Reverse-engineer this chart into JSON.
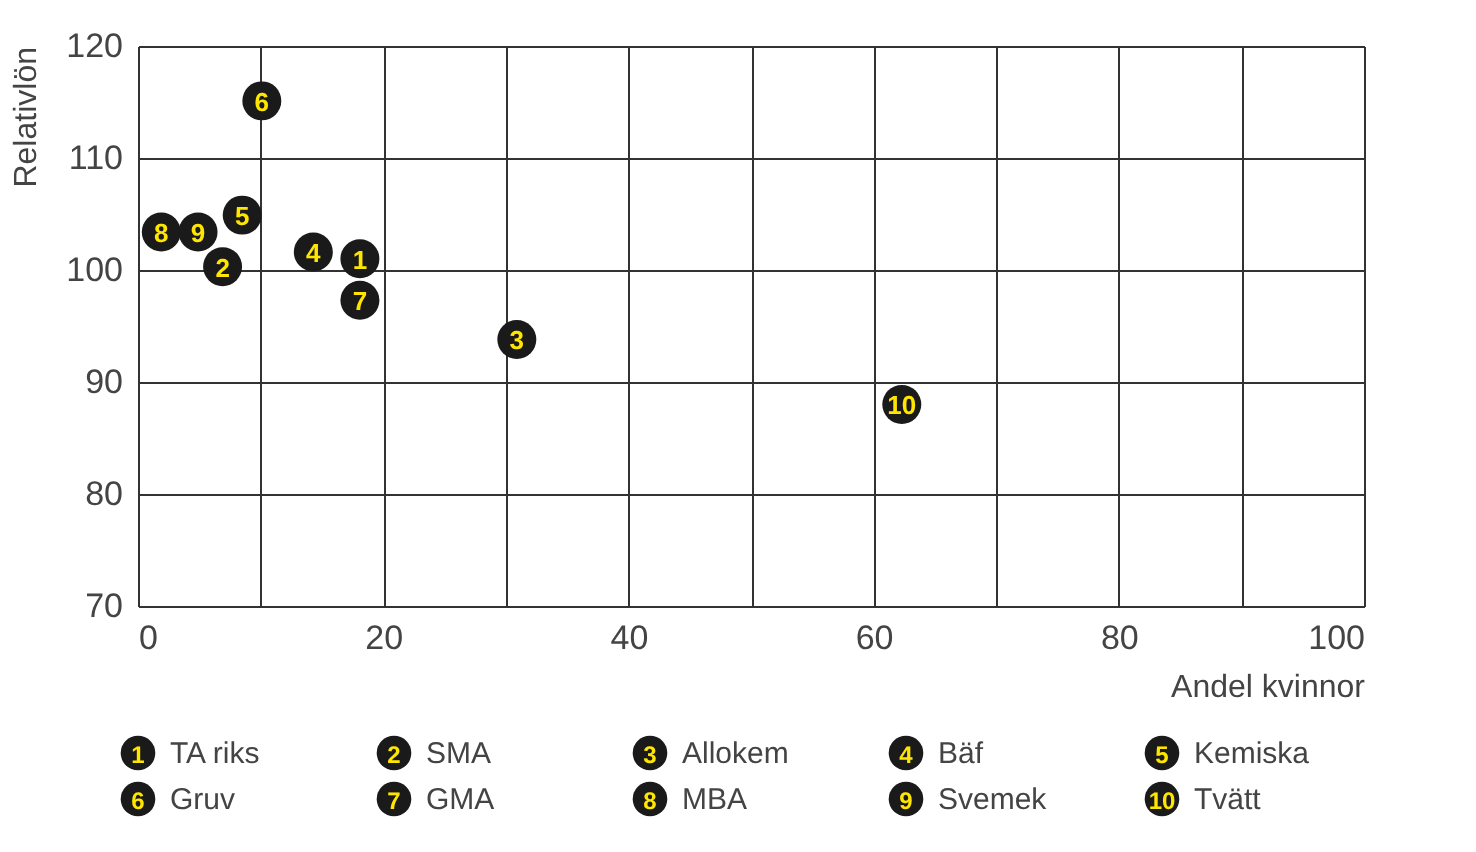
{
  "chart_data": {
    "type": "scatter",
    "xlabel": "Andel kvinnor",
    "ylabel": "Relativlön",
    "xlim": [
      0,
      100
    ],
    "ylim": [
      70,
      120
    ],
    "xticks": [
      0,
      {
        "value": 10,
        "label": null
      },
      20,
      {
        "value": 30,
        "label": null
      },
      40,
      {
        "value": 50,
        "label": null
      },
      60,
      {
        "value": 70,
        "label": null
      },
      80,
      {
        "value": 90,
        "label": null
      },
      100
    ],
    "yticks": [
      70,
      80,
      90,
      100,
      110,
      120
    ],
    "grid": true,
    "legend": "bottom",
    "marker": "circle",
    "series": [
      {
        "name": "TA riks",
        "color": "#1a1a1a",
        "x": [
          18.1
        ],
        "values": [
          101.0
        ]
      },
      {
        "name": "SMA",
        "color": "#1a1a1a",
        "x": [
          6.9
        ],
        "values": [
          100.3
        ]
      },
      {
        "name": "Allokem",
        "color": "#1a1a1a",
        "x": [
          30.9
        ],
        "values": [
          93.8
        ]
      },
      {
        "name": "Bäf",
        "color": "#1a1a1a",
        "x": [
          14.3
        ],
        "values": [
          101.6
        ]
      },
      {
        "name": "Kemiska",
        "color": "#1a1a1a",
        "x": [
          8.5
        ],
        "values": [
          104.9
        ]
      },
      {
        "name": "Gruv",
        "color": "#1a1a1a",
        "x": [
          10.1
        ],
        "values": [
          115.1
        ]
      },
      {
        "name": "GMA",
        "color": "#1a1a1a",
        "x": [
          18.1
        ],
        "values": [
          97.3
        ]
      },
      {
        "name": "MBA",
        "color": "#1a1a1a",
        "x": [
          1.9
        ],
        "values": [
          103.4
        ]
      },
      {
        "name": "Svemek",
        "color": "#1a1a1a",
        "x": [
          4.9
        ],
        "values": [
          103.4
        ]
      },
      {
        "name": "Tvätt",
        "color": "#1a1a1a",
        "x": [
          62.3
        ],
        "values": [
          88.0
        ]
      }
    ],
    "annotations": [
      {
        "text": "1",
        "x": 18.1,
        "y": 101.0
      },
      {
        "text": "2",
        "x": 6.9,
        "y": 100.3
      },
      {
        "text": "3",
        "x": 30.9,
        "y": 93.8
      },
      {
        "text": "4",
        "x": 14.3,
        "y": 101.6
      },
      {
        "text": "5",
        "x": 8.5,
        "y": 104.9
      },
      {
        "text": "6",
        "x": 10.1,
        "y": 115.1
      },
      {
        "text": "7",
        "x": 18.1,
        "y": 97.3
      },
      {
        "text": "8",
        "x": 1.9,
        "y": 103.4
      },
      {
        "text": "9",
        "x": 4.9,
        "y": 103.4
      },
      {
        "text": "10",
        "x": 62.3,
        "y": 88.0
      }
    ]
  }
}
